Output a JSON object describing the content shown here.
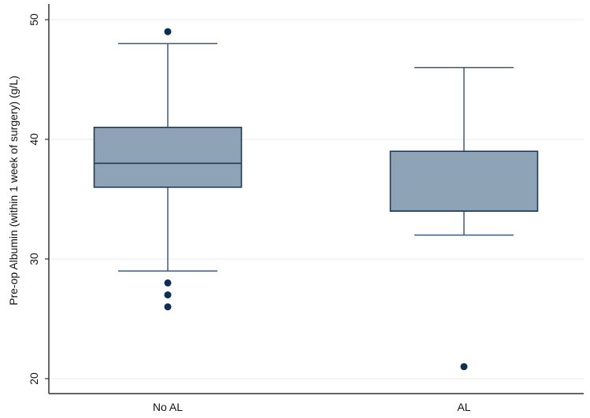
{
  "chart_data": {
    "type": "box",
    "title": "",
    "xlabel": "",
    "ylabel": "Pre-op Albumin (within 1 week of surgery) (g/L)",
    "ylim": [
      18.7,
      51.3
    ],
    "yticks": [
      20,
      30,
      40,
      50
    ],
    "grid": true,
    "legend": null,
    "categories": [
      "No AL",
      "AL"
    ],
    "series": [
      {
        "name": "No AL",
        "whisker_low": 29,
        "q1": 36,
        "median": 38,
        "q3": 41,
        "whisker_high": 48,
        "outliers": [
          49,
          28,
          27,
          26
        ]
      },
      {
        "name": "AL",
        "whisker_low": 32,
        "q1": 34,
        "median": 34,
        "q3": 39,
        "whisker_high": 46,
        "outliers": [
          21
        ]
      }
    ],
    "colors": {
      "box_fill": "#8fa3b7",
      "box_stroke": "#1f3a55",
      "whisker": "#3d5a78",
      "outlier": "#0d2f55",
      "grid": "#eaeef0",
      "axis": "#333333"
    }
  }
}
